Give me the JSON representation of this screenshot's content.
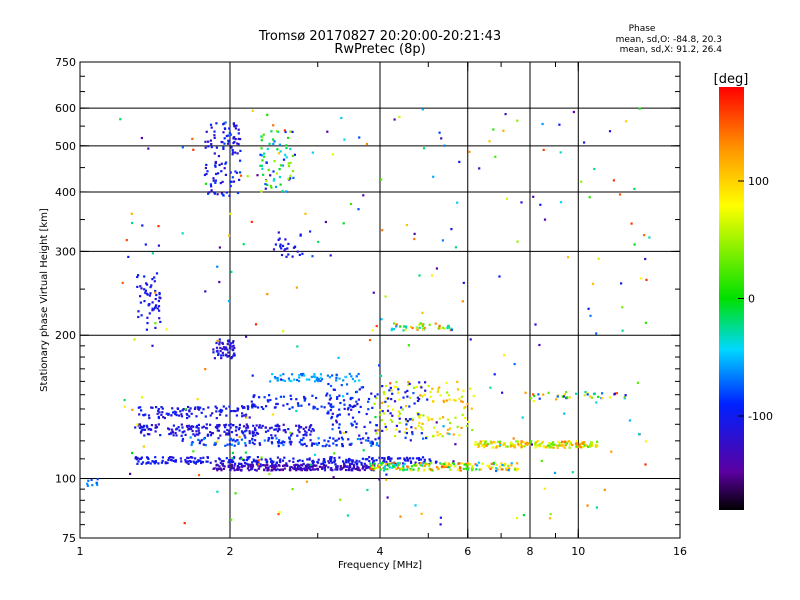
{
  "chart_data": {
    "type": "scatter",
    "title": "Tromsø 20170827 20:20:00-20:21:43",
    "subtitle": "RwPretec (8p)",
    "xlabel": "Frequency [MHz]",
    "ylabel": "Stationary phase Virtual Height [km]",
    "x_scale": "log",
    "y_scale": "log",
    "xlim": [
      1,
      16
    ],
    "ylim": [
      75,
      750
    ],
    "x_ticks": [
      1,
      2,
      4,
      6,
      8,
      10,
      16
    ],
    "x_tick_labels": [
      "1",
      "2",
      "4",
      "6",
      "8",
      "10",
      "16"
    ],
    "x_gridlines": [
      2,
      4,
      6,
      8,
      10
    ],
    "y_ticks": [
      75,
      100,
      200,
      300,
      400,
      500,
      600,
      750
    ],
    "y_tick_labels": [
      "75",
      "100",
      "200",
      "300",
      "400",
      "500",
      "600",
      "750"
    ],
    "y_gridlines": [
      100,
      200,
      300,
      400,
      500,
      600
    ],
    "grid": true,
    "legend_title": "Phase",
    "legend_lines": [
      "mean, sd,O: -84.8, 20.3",
      "mean, sd,X:  91.2, 26.4"
    ],
    "colorbar": {
      "label": "[deg]",
      "range": [
        -180,
        180
      ],
      "ticks": [
        100,
        0,
        -100
      ],
      "tick_labels": [
        "100",
        "0",
        "-100"
      ],
      "colormap": "black-purple-blue-cyan-green-yellow-red"
    },
    "clusters": [
      {
        "f": [
          1.28,
          5.2
        ],
        "h": [
          107,
          111
        ],
        "phase": [
          -120,
          -90
        ],
        "n": 280
      },
      {
        "f": [
          1.85,
          3.9
        ],
        "h": [
          104,
          107
        ],
        "phase": [
          -150,
          -110
        ],
        "n": 240
      },
      {
        "f": [
          3.8,
          7.6
        ],
        "h": [
          104,
          108
        ],
        "phase": [
          -60,
          160
        ],
        "n": 190
      },
      {
        "f": [
          6.2,
          11.0
        ],
        "h": [
          116,
          120
        ],
        "phase": [
          20,
          140
        ],
        "n": 160
      },
      {
        "f": [
          1.28,
          3.0
        ],
        "h": [
          123,
          130
        ],
        "phase": [
          -125,
          -95
        ],
        "n": 200
      },
      {
        "f": [
          1.6,
          4.0
        ],
        "h": [
          117,
          122
        ],
        "phase": [
          -115,
          -60
        ],
        "n": 130
      },
      {
        "f": [
          1.3,
          2.2
        ],
        "h": [
          134,
          142
        ],
        "phase": [
          -120,
          -90
        ],
        "n": 100
      },
      {
        "f": [
          2.2,
          3.6
        ],
        "h": [
          140,
          150
        ],
        "phase": [
          -110,
          -80
        ],
        "n": 70
      },
      {
        "f": [
          2.4,
          3.7
        ],
        "h": [
          160,
          166
        ],
        "phase": [
          -80,
          -40
        ],
        "n": 60
      },
      {
        "f": [
          3.9,
          6.2
        ],
        "h": [
          122,
          160
        ],
        "phase": [
          40,
          130
        ],
        "n": 120
      },
      {
        "f": [
          3.1,
          5.0
        ],
        "h": [
          120,
          160
        ],
        "phase": [
          -120,
          -70
        ],
        "n": 120
      },
      {
        "f": [
          4.2,
          5.6
        ],
        "h": [
          205,
          212
        ],
        "phase": [
          -60,
          150
        ],
        "n": 40
      },
      {
        "f": [
          1.85,
          2.05
        ],
        "h": [
          178,
          196
        ],
        "phase": [
          -130,
          -90
        ],
        "n": 50
      },
      {
        "f": [
          1.3,
          1.45
        ],
        "h": [
          205,
          270
        ],
        "phase": [
          -120,
          -90
        ],
        "n": 55
      },
      {
        "f": [
          1.78,
          2.1
        ],
        "h": [
          390,
          560
        ],
        "phase": [
          -130,
          -80
        ],
        "n": 110
      },
      {
        "f": [
          2.3,
          2.7
        ],
        "h": [
          400,
          540
        ],
        "phase": [
          -120,
          60
        ],
        "n": 70
      },
      {
        "f": [
          2.4,
          2.8
        ],
        "h": [
          285,
          330
        ],
        "phase": [
          -120,
          -90
        ],
        "n": 25
      },
      {
        "f": [
          7.8,
          12.5
        ],
        "h": [
          147,
          152
        ],
        "phase": [
          -120,
          160
        ],
        "n": 35
      },
      {
        "f": [
          1.0,
          1.1
        ],
        "h": [
          96,
          100
        ],
        "phase": [
          -80,
          -60
        ],
        "n": 12
      },
      {
        "f": [
          1.2,
          14.0
        ],
        "h": [
          80,
          600
        ],
        "phase": [
          -150,
          170
        ],
        "n": 260
      }
    ]
  }
}
